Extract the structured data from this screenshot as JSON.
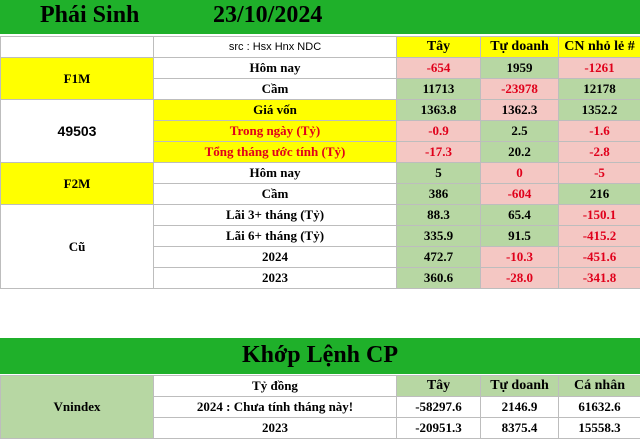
{
  "header": {
    "title": "Phái Sinh",
    "date": "23/10/2024"
  },
  "columns": {
    "src": "src : Hsx Hnx NDC",
    "c1": "Tây",
    "c2": "Tự doanh",
    "c3": "CN nhỏ lẻ #"
  },
  "sections": {
    "f1m": {
      "label": "F1M",
      "rows": [
        {
          "label": "Hôm nay",
          "v1": "-654",
          "v2": "1959",
          "v3": "-1261"
        },
        {
          "label": "Cầm",
          "v1": "11713",
          "v2": "-23978",
          "v3": "12178"
        }
      ]
    },
    "oi": {
      "label": "49503",
      "rows": [
        {
          "label": "Giá vốn",
          "v1": "1363.8",
          "v2": "1362.3",
          "v3": "1352.2"
        },
        {
          "label": "Trong ngày (Tỷ)",
          "v1": "-0.9",
          "v2": "2.5",
          "v3": "-1.6"
        },
        {
          "label": "Tổng tháng ước tính (Tỷ)",
          "v1": "-17.3",
          "v2": "20.2",
          "v3": "-2.8"
        }
      ]
    },
    "f2m": {
      "label": "F2M",
      "rows": [
        {
          "label": "Hôm nay",
          "v1": "5",
          "v2": "0",
          "v3": "-5"
        },
        {
          "label": "Cầm",
          "v1": "386",
          "v2": "-604",
          "v3": "216"
        }
      ]
    },
    "cu": {
      "label": "Cũ",
      "rows": [
        {
          "label": "Lãi 3+ tháng (Tỷ)",
          "v1": "88.3",
          "v2": "65.4",
          "v3": "-150.1"
        },
        {
          "label": "Lãi 6+ tháng (Tỷ)",
          "v1": "335.9",
          "v2": "91.5",
          "v3": "-415.2"
        },
        {
          "label": "2024",
          "v1": "472.7",
          "v2": "-10.3",
          "v3": "-451.6"
        },
        {
          "label": "2023",
          "v1": "360.6",
          "v2": "-28.0",
          "v3": "-341.8"
        }
      ]
    }
  },
  "matching": {
    "title": "Khớp Lệnh CP",
    "unit": "Tỷ đồng",
    "columns": {
      "c1": "Tây",
      "c2": "Tự doanh",
      "c3": "Cá nhân"
    },
    "label": "Vnindex",
    "rows": [
      {
        "label": "2024 : Chưa tính tháng này!",
        "v1": "-58297.6",
        "v2": "2146.9",
        "v3": "61632.6"
      },
      {
        "label": "2023",
        "v1": "-20951.3",
        "v2": "8375.4",
        "v3": "15558.3"
      }
    ]
  },
  "colors": {
    "banner": "#1fb02a",
    "yellow": "#ffff00",
    "pink": "#f4c7c3",
    "green": "#b7d7a3",
    "red": "#e0001b"
  }
}
